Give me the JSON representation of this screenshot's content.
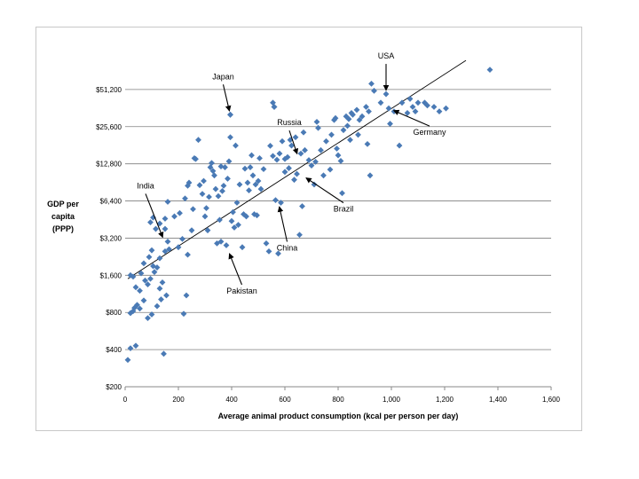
{
  "chart_data": {
    "type": "scatter",
    "title": "",
    "xlabel": "Average animal product consumption (kcal per person per day)",
    "ylabel": [
      "GDP per",
      "capita",
      "(PPP)"
    ],
    "x_ticks": [
      "0",
      "200",
      "400",
      "600",
      "800",
      "1,000",
      "1,200",
      "1,400",
      "1,600"
    ],
    "x_tick_values": [
      0,
      200,
      400,
      600,
      800,
      1000,
      1200,
      1400,
      1600
    ],
    "y_ticks": [
      "$200",
      "$400",
      "$800",
      "$1,600",
      "$3,200",
      "$6,400",
      "$12,800",
      "$25,600",
      "$51,200"
    ],
    "y_tick_values": [
      200,
      400,
      800,
      1600,
      3200,
      6400,
      12800,
      25600,
      51200
    ],
    "xlim": [
      0,
      1600
    ],
    "ylim": [
      200,
      102400
    ],
    "y_scale": "log2",
    "grid": "horizontal",
    "marker_color": "#4a7ab5",
    "trendline": {
      "x": [
        10,
        1280
      ],
      "y": [
        1500,
        88000
      ]
    },
    "points": [
      [
        10,
        330
      ],
      [
        20,
        410
      ],
      [
        40,
        430
      ],
      [
        145,
        370
      ],
      [
        20,
        790
      ],
      [
        30,
        820
      ],
      [
        35,
        870
      ],
      [
        45,
        920
      ],
      [
        55,
        860
      ],
      [
        70,
        1000
      ],
      [
        85,
        720
      ],
      [
        100,
        770
      ],
      [
        120,
        900
      ],
      [
        135,
        1020
      ],
      [
        220,
        780
      ],
      [
        20,
        1600
      ],
      [
        30,
        1560
      ],
      [
        40,
        1280
      ],
      [
        55,
        1200
      ],
      [
        60,
        1660
      ],
      [
        75,
        1450
      ],
      [
        85,
        1350
      ],
      [
        95,
        1500
      ],
      [
        105,
        1900
      ],
      [
        110,
        1700
      ],
      [
        120,
        1850
      ],
      [
        130,
        1250
      ],
      [
        140,
        1400
      ],
      [
        155,
        1100
      ],
      [
        70,
        2000
      ],
      [
        90,
        2250
      ],
      [
        100,
        2550
      ],
      [
        130,
        2200
      ],
      [
        150,
        2500
      ],
      [
        160,
        3000
      ],
      [
        200,
        2700
      ],
      [
        215,
        3150
      ],
      [
        235,
        2350
      ],
      [
        230,
        1100
      ],
      [
        95,
        4300
      ],
      [
        105,
        4700
      ],
      [
        115,
        3800
      ],
      [
        130,
        4200
      ],
      [
        150,
        3800
      ],
      [
        150,
        4600
      ],
      [
        160,
        6300
      ],
      [
        185,
        4800
      ],
      [
        205,
        5100
      ],
      [
        225,
        6700
      ],
      [
        235,
        8500
      ],
      [
        240,
        9000
      ],
      [
        255,
        5500
      ],
      [
        250,
        3700
      ],
      [
        260,
        14200
      ],
      [
        265,
        14000
      ],
      [
        275,
        20000
      ],
      [
        280,
        8600
      ],
      [
        290,
        7300
      ],
      [
        295,
        9300
      ],
      [
        300,
        4800
      ],
      [
        305,
        5600
      ],
      [
        310,
        3700
      ],
      [
        315,
        6900
      ],
      [
        320,
        12000
      ],
      [
        325,
        13000
      ],
      [
        330,
        11200
      ],
      [
        335,
        10300
      ],
      [
        340,
        8000
      ],
      [
        345,
        2900
      ],
      [
        350,
        7000
      ],
      [
        355,
        4500
      ],
      [
        360,
        3000
      ],
      [
        360,
        12200
      ],
      [
        365,
        7700
      ],
      [
        370,
        8500
      ],
      [
        375,
        12000
      ],
      [
        380,
        2800
      ],
      [
        385,
        9700
      ],
      [
        390,
        13400
      ],
      [
        395,
        32000
      ],
      [
        395,
        21000
      ],
      [
        400,
        4400
      ],
      [
        405,
        5200
      ],
      [
        410,
        3900
      ],
      [
        415,
        18000
      ],
      [
        420,
        6200
      ],
      [
        425,
        4100
      ],
      [
        430,
        8700
      ],
      [
        440,
        2700
      ],
      [
        445,
        5000
      ],
      [
        450,
        11700
      ],
      [
        455,
        4800
      ],
      [
        460,
        9000
      ],
      [
        465,
        7800
      ],
      [
        470,
        12000
      ],
      [
        475,
        15000
      ],
      [
        480,
        10300
      ],
      [
        485,
        5000
      ],
      [
        490,
        8700
      ],
      [
        495,
        4900
      ],
      [
        500,
        9300
      ],
      [
        505,
        14200
      ],
      [
        510,
        8000
      ],
      [
        520,
        11600
      ],
      [
        530,
        2900
      ],
      [
        540,
        2500
      ],
      [
        545,
        17900
      ],
      [
        555,
        40000
      ],
      [
        560,
        37000
      ],
      [
        565,
        6500
      ],
      [
        570,
        13800
      ],
      [
        575,
        2400
      ],
      [
        580,
        15500
      ],
      [
        585,
        6200
      ],
      [
        590,
        19500
      ],
      [
        600,
        14000
      ],
      [
        600,
        11000
      ],
      [
        610,
        14500
      ],
      [
        615,
        11800
      ],
      [
        620,
        20000
      ],
      [
        625,
        18000
      ],
      [
        635,
        9500
      ],
      [
        640,
        21000
      ],
      [
        645,
        10600
      ],
      [
        655,
        3400
      ],
      [
        660,
        15500
      ],
      [
        665,
        5800
      ],
      [
        670,
        23000
      ],
      [
        675,
        16500
      ],
      [
        690,
        13700
      ],
      [
        700,
        12400
      ],
      [
        710,
        8700
      ],
      [
        715,
        13300
      ],
      [
        720,
        28000
      ],
      [
        725,
        25000
      ],
      [
        735,
        16500
      ],
      [
        745,
        10300
      ],
      [
        755,
        19500
      ],
      [
        770,
        11500
      ],
      [
        775,
        22000
      ],
      [
        785,
        29000
      ],
      [
        790,
        30000
      ],
      [
        795,
        17000
      ],
      [
        800,
        15000
      ],
      [
        810,
        13500
      ],
      [
        815,
        7400
      ],
      [
        820,
        24000
      ],
      [
        830,
        31000
      ],
      [
        835,
        26000
      ],
      [
        840,
        29500
      ],
      [
        845,
        20000
      ],
      [
        850,
        33000
      ],
      [
        855,
        32000
      ],
      [
        870,
        35000
      ],
      [
        875,
        22000
      ],
      [
        880,
        29000
      ],
      [
        890,
        31000
      ],
      [
        905,
        37000
      ],
      [
        910,
        18500
      ],
      [
        915,
        34000
      ],
      [
        920,
        10300
      ],
      [
        925,
        57000
      ],
      [
        935,
        50000
      ],
      [
        960,
        40000
      ],
      [
        980,
        47000
      ],
      [
        990,
        36000
      ],
      [
        995,
        27000
      ],
      [
        1010,
        34000
      ],
      [
        1030,
        18000
      ],
      [
        1040,
        40000
      ],
      [
        1060,
        33000
      ],
      [
        1070,
        43000
      ],
      [
        1080,
        37000
      ],
      [
        1090,
        34000
      ],
      [
        1100,
        40000
      ],
      [
        1125,
        40000
      ],
      [
        1135,
        38000
      ],
      [
        1160,
        37000
      ],
      [
        1180,
        34000
      ],
      [
        1205,
        36000
      ],
      [
        1370,
        74000
      ],
      [
        395,
        32000
      ],
      [
        560,
        37000
      ],
      [
        555,
        14800
      ],
      [
        165,
        2600
      ]
    ],
    "annotations": [
      {
        "label": "USA",
        "x": 980,
        "y": 47000
      },
      {
        "label": "Japan",
        "x": 395,
        "y": 32000
      },
      {
        "label": "Russia",
        "x": 650,
        "y": 14500
      },
      {
        "label": "Germany",
        "x": 990,
        "y": 36000
      },
      {
        "label": "India",
        "x": 150,
        "y": 2900
      },
      {
        "label": "Brazil",
        "x": 660,
        "y": 10500
      },
      {
        "label": "China",
        "x": 575,
        "y": 6300
      },
      {
        "label": "Pakistan",
        "x": 385,
        "y": 2600
      }
    ]
  }
}
